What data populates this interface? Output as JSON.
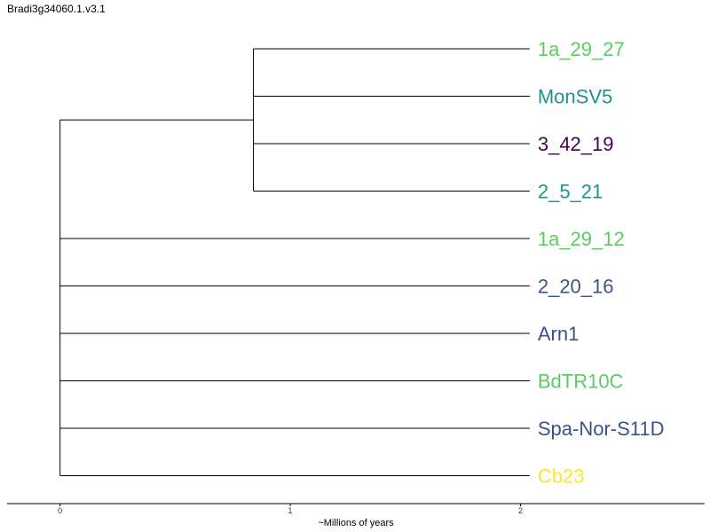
{
  "title": "Bradi3g34060.1.v3.1",
  "chart_data": {
    "type": "dendrogram",
    "title": "Bradi3g34060.1.v3.1",
    "xlabel": "~Millions of years",
    "ylabel": "",
    "xlim": [
      -0.23,
      2.8
    ],
    "x_ticks": [
      0,
      1,
      2
    ],
    "x_tick_labels": [
      "0",
      "1",
      "2"
    ],
    "grid": false,
    "leaves": [
      {
        "name": "1a_29_27",
        "color": "#5ec962"
      },
      {
        "name": "MonSV5",
        "color": "#21918c"
      },
      {
        "name": "3_42_19",
        "color": "#440154"
      },
      {
        "name": "2_5_21",
        "color": "#21918c"
      },
      {
        "name": "1a_29_12",
        "color": "#5ec962"
      },
      {
        "name": "2_20_16",
        "color": "#3b528b"
      },
      {
        "name": "Arn1",
        "color": "#3b528b"
      },
      {
        "name": "BdTR10C",
        "color": "#5ec962"
      },
      {
        "name": "Spa-Nor-S11D",
        "color": "#3b528b"
      },
      {
        "name": "Cb23",
        "color": "#fde725"
      }
    ],
    "leaf_depth": 2.04,
    "clades": [
      {
        "members": [
          0,
          1,
          2,
          3
        ],
        "divergence": 1.2
      },
      {
        "members": [
          0,
          1,
          2,
          3,
          4,
          5,
          6,
          7,
          8,
          9
        ],
        "divergence": 2.04
      }
    ]
  }
}
